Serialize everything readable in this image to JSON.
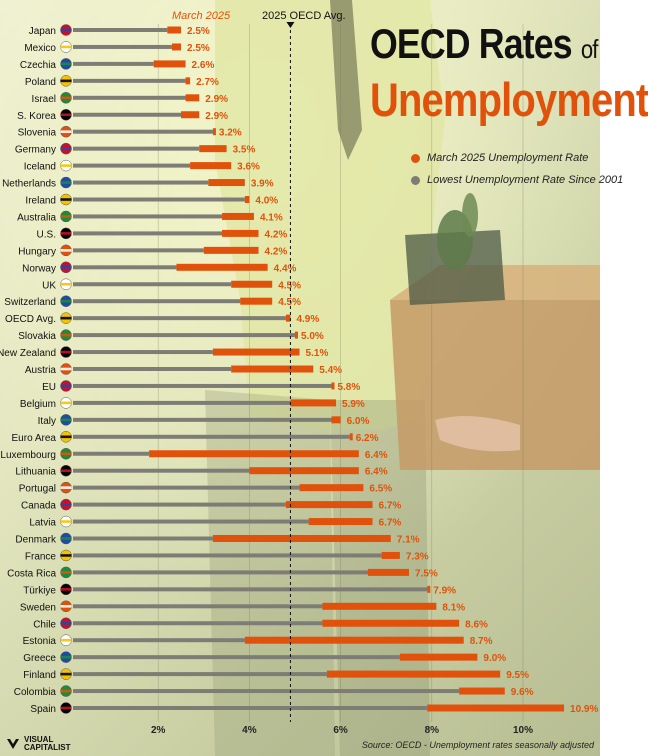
{
  "title": {
    "line1": "OECD Rates",
    "of": "of",
    "line2": "Unemployment"
  },
  "legend": [
    {
      "label": "March 2025 Unemployment Rate",
      "color": "#e0520c"
    },
    {
      "label": "Lowest Unemployment Rate Since 2001",
      "color": "#7d7d75"
    }
  ],
  "annotations": {
    "march_label": "March 2025",
    "avg_label": "2025 OECD Avg."
  },
  "source": "Source: OECD - Unemployment rates seasonally adjusted",
  "logo": {
    "line1": "VISUAL",
    "line2": "CAPITALIST"
  },
  "chart_data": {
    "type": "bar",
    "title": "OECD Rates of Unemployment",
    "xlim": [
      0,
      11
    ],
    "x_ticks": [
      {
        "value": 2,
        "label": "2%"
      },
      {
        "value": 4,
        "label": "4%"
      },
      {
        "value": 6,
        "label": "6%"
      },
      {
        "value": 8,
        "label": "8%"
      },
      {
        "value": 10,
        "label": "10%"
      }
    ],
    "reference_line": {
      "value": 4.9,
      "label": "2025 OECD Avg."
    },
    "series": [
      {
        "name": "March 2025 Unemployment Rate",
        "color": "#e0520c"
      },
      {
        "name": "Lowest Unemployment Rate Since 2001",
        "color": "#7d7d75"
      }
    ],
    "rows": [
      {
        "country": "Japan",
        "current": 2.5,
        "current_label": "2.5%",
        "lowest": 2.2
      },
      {
        "country": "Mexico",
        "current": 2.5,
        "current_label": "2.5%",
        "lowest": 2.3
      },
      {
        "country": "Czechia",
        "current": 2.6,
        "current_label": "2.6%",
        "lowest": 1.9
      },
      {
        "country": "Poland",
        "current": 2.7,
        "current_label": "2.7%",
        "lowest": 2.6
      },
      {
        "country": "Israel",
        "current": 2.9,
        "current_label": "2.9%",
        "lowest": 2.6
      },
      {
        "country": "S. Korea",
        "current": 2.9,
        "current_label": "2.9%",
        "lowest": 2.5
      },
      {
        "country": "Slovenia",
        "current": 3.2,
        "current_label": "3.2%",
        "lowest": 3.2
      },
      {
        "country": "Germany",
        "current": 3.5,
        "current_label": "3.5%",
        "lowest": 2.9
      },
      {
        "country": "Iceland",
        "current": 3.6,
        "current_label": "3.6%",
        "lowest": 2.7
      },
      {
        "country": "Netherlands",
        "current": 3.9,
        "current_label": "3.9%",
        "lowest": 3.1
      },
      {
        "country": "Ireland",
        "current": 4.0,
        "current_label": "4.0%",
        "lowest": 3.9
      },
      {
        "country": "Australia",
        "current": 4.1,
        "current_label": "4.1%",
        "lowest": 3.4
      },
      {
        "country": "U.S.",
        "current": 4.2,
        "current_label": "4.2%",
        "lowest": 3.4
      },
      {
        "country": "Hungary",
        "current": 4.2,
        "current_label": "4.2%",
        "lowest": 3.0
      },
      {
        "country": "Norway",
        "current": 4.4,
        "current_label": "4.4%",
        "lowest": 2.4
      },
      {
        "country": "UK",
        "current": 4.5,
        "current_label": "4.5%",
        "lowest": 3.6
      },
      {
        "country": "Switzerland",
        "current": 4.5,
        "current_label": "4.5%",
        "lowest": 3.8
      },
      {
        "country": "OECD Avg.",
        "current": 4.9,
        "current_label": "4.9%",
        "lowest": 4.8
      },
      {
        "country": "Slovakia",
        "current": 5.0,
        "current_label": "5.0%",
        "lowest": 5.0
      },
      {
        "country": "New Zealand",
        "current": 5.1,
        "current_label": "5.1%",
        "lowest": 3.2
      },
      {
        "country": "Austria",
        "current": 5.4,
        "current_label": "5.4%",
        "lowest": 3.6
      },
      {
        "country": "EU",
        "current": 5.8,
        "current_label": "5.8%",
        "lowest": 5.8
      },
      {
        "country": "Belgium",
        "current": 5.9,
        "current_label": "5.9%",
        "lowest": 4.9
      },
      {
        "country": "Italy",
        "current": 6.0,
        "current_label": "6.0%",
        "lowest": 5.8
      },
      {
        "country": "Euro Area",
        "current": 6.2,
        "current_label": "6.2%",
        "lowest": 6.2
      },
      {
        "country": "Luxembourg",
        "current": 6.4,
        "current_label": "6.4%",
        "lowest": 1.8
      },
      {
        "country": "Lithuania",
        "current": 6.4,
        "current_label": "6.4%",
        "lowest": 4.0
      },
      {
        "country": "Portugal",
        "current": 6.5,
        "current_label": "6.5%",
        "lowest": 5.1
      },
      {
        "country": "Canada",
        "current": 6.7,
        "current_label": "6.7%",
        "lowest": 4.8
      },
      {
        "country": "Latvia",
        "current": 6.7,
        "current_label": "6.7%",
        "lowest": 5.3
      },
      {
        "country": "Denmark",
        "current": 7.1,
        "current_label": "7.1%",
        "lowest": 3.2
      },
      {
        "country": "France",
        "current": 7.3,
        "current_label": "7.3%",
        "lowest": 6.9
      },
      {
        "country": "Costa Rica",
        "current": 7.5,
        "current_label": "7.5%",
        "lowest": 6.6
      },
      {
        "country": "Türkiye",
        "current": 7.9,
        "current_label": "7.9%",
        "lowest": 7.9
      },
      {
        "country": "Sweden",
        "current": 8.1,
        "current_label": "8.1%",
        "lowest": 5.6
      },
      {
        "country": "Chile",
        "current": 8.6,
        "current_label": "8.6%",
        "lowest": 5.6
      },
      {
        "country": "Estonia",
        "current": 8.7,
        "current_label": "8.7%",
        "lowest": 3.9
      },
      {
        "country": "Greece",
        "current": 9.0,
        "current_label": "9.0%",
        "lowest": 7.3
      },
      {
        "country": "Finland",
        "current": 9.5,
        "current_label": "9.5%",
        "lowest": 5.7
      },
      {
        "country": "Colombia",
        "current": 9.6,
        "current_label": "9.6%",
        "lowest": 8.6
      },
      {
        "country": "Spain",
        "current": 10.9,
        "current_label": "10.9%",
        "lowest": 7.9
      }
    ]
  }
}
